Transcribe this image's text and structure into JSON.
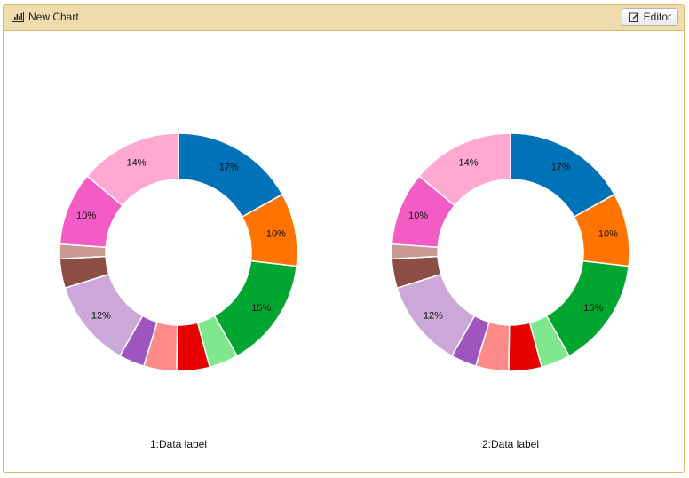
{
  "window": {
    "title": "New Chart",
    "editor_label": "Editor"
  },
  "icons": {
    "title_icon": "bar-chart-icon",
    "editor_icon": "edit-icon"
  },
  "chart_data": [
    {
      "type": "pie",
      "donut": true,
      "label": "1:Data label",
      "slices": [
        {
          "value": 17,
          "label": "17%",
          "color": "#0072b8"
        },
        {
          "value": 10,
          "label": "10%",
          "color": "#ff7300"
        },
        {
          "value": 15,
          "label": "15%",
          "color": "#00a630"
        },
        {
          "value": 4,
          "label": "",
          "color": "#80e88c"
        },
        {
          "value": 4.5,
          "label": "",
          "color": "#e60000"
        },
        {
          "value": 4.5,
          "label": "",
          "color": "#ff8a8a"
        },
        {
          "value": 3.5,
          "label": "",
          "color": "#9e55c0"
        },
        {
          "value": 12,
          "label": "12%",
          "color": "#cca8d8"
        },
        {
          "value": 4,
          "label": "",
          "color": "#8c4e44"
        },
        {
          "value": 2,
          "label": "",
          "color": "#c99a92"
        },
        {
          "value": 10,
          "label": "10%",
          "color": "#f25cc4"
        },
        {
          "value": 14,
          "label": "14%",
          "color": "#ffa9d2"
        }
      ]
    },
    {
      "type": "pie",
      "donut": true,
      "label": "2:Data label",
      "slices": [
        {
          "value": 17,
          "label": "17%",
          "color": "#0072b8"
        },
        {
          "value": 10,
          "label": "10%",
          "color": "#ff7300"
        },
        {
          "value": 15,
          "label": "15%",
          "color": "#00a630"
        },
        {
          "value": 4,
          "label": "",
          "color": "#80e88c"
        },
        {
          "value": 4.5,
          "label": "",
          "color": "#e60000"
        },
        {
          "value": 4.5,
          "label": "",
          "color": "#ff8a8a"
        },
        {
          "value": 3.5,
          "label": "",
          "color": "#9e55c0"
        },
        {
          "value": 12,
          "label": "12%",
          "color": "#cca8d8"
        },
        {
          "value": 4,
          "label": "",
          "color": "#8c4e44"
        },
        {
          "value": 2,
          "label": "",
          "color": "#c99a92"
        },
        {
          "value": 10,
          "label": "10%",
          "color": "#f25cc4"
        },
        {
          "value": 14,
          "label": "14%",
          "color": "#ffa9d2"
        }
      ]
    }
  ]
}
